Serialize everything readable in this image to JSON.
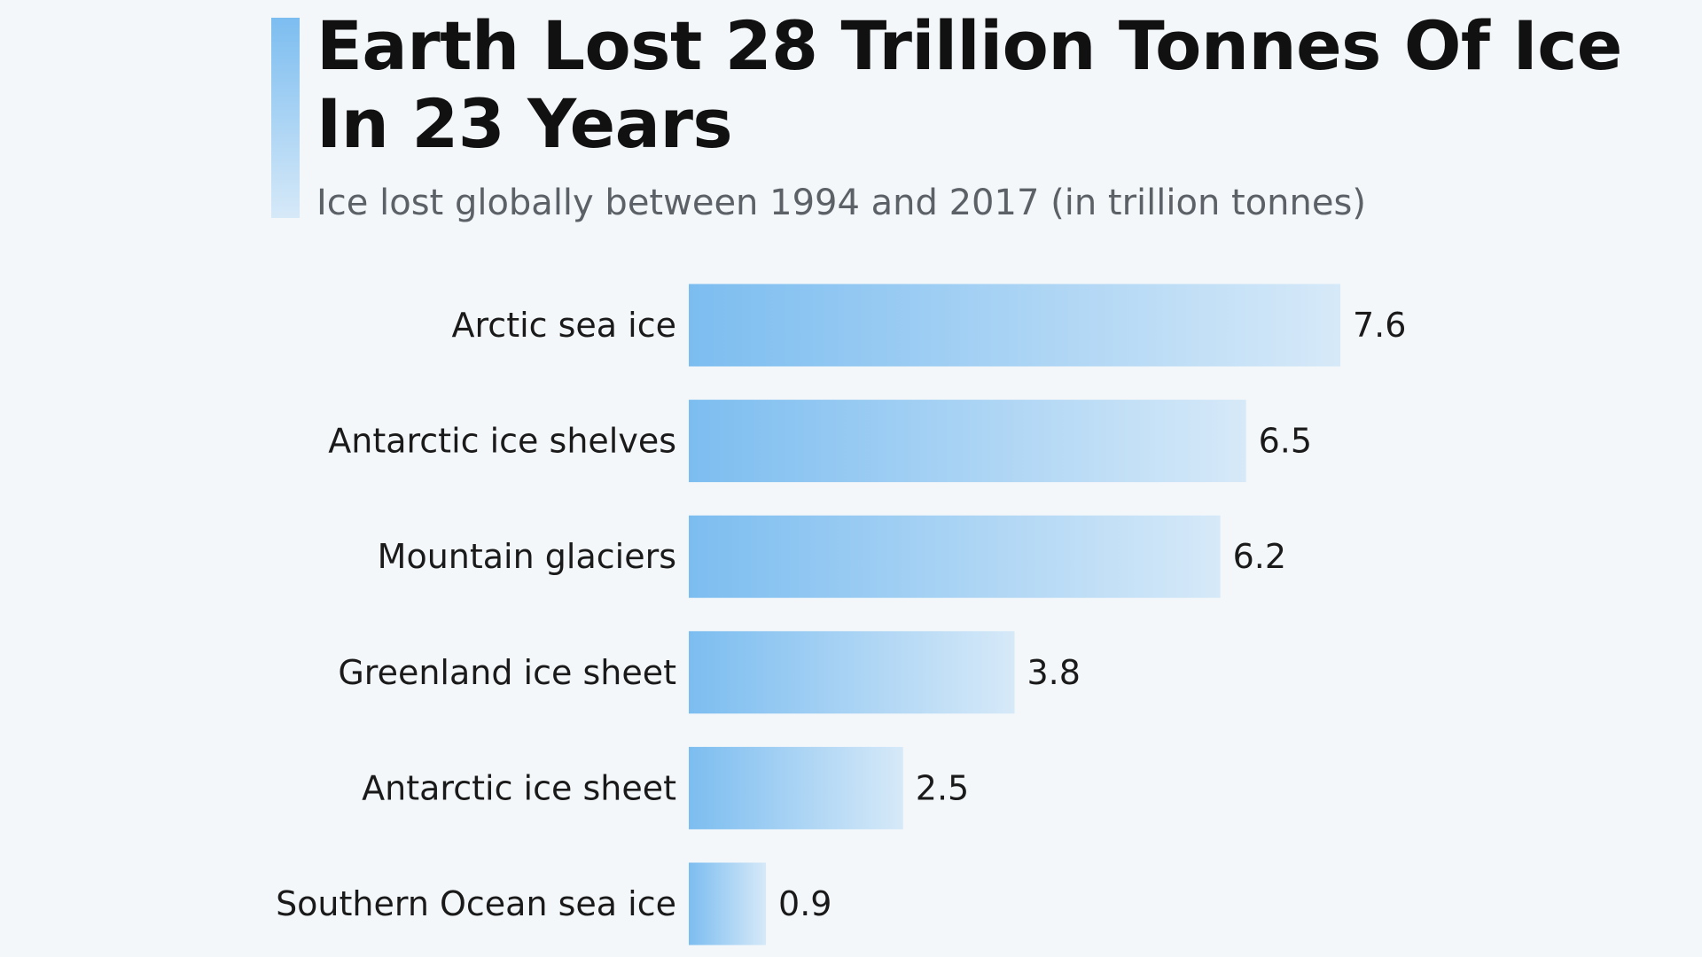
{
  "title": "Earth Lost 28 Trillion Tonnes Of Ice In 23 Years",
  "subtitle": "Ice lost globally between 1994 and 2017 (in trillion tonnes)",
  "colors": {
    "bar_start": "#7cbdf0",
    "bar_end": "#d6e9f8",
    "background": "#f3f7fa"
  },
  "chart_data": {
    "type": "bar",
    "orientation": "horizontal",
    "title": "Earth Lost 28 Trillion Tonnes Of Ice In 23 Years",
    "subtitle": "Ice lost globally between 1994 and 2017 (in trillion tonnes)",
    "categories": [
      "Arctic sea ice",
      "Antarctic ice shelves",
      "Mountain glaciers",
      "Greenland ice sheet",
      "Antarctic ice sheet",
      "Southern Ocean sea ice"
    ],
    "values": [
      7.6,
      6.5,
      6.2,
      3.8,
      2.5,
      0.9
    ],
    "value_labels": [
      "7.6",
      "6.5",
      "6.2",
      "3.8",
      "2.5",
      "0.9"
    ],
    "xlim": [
      0,
      7.6
    ],
    "grid": false,
    "legend": "none"
  }
}
